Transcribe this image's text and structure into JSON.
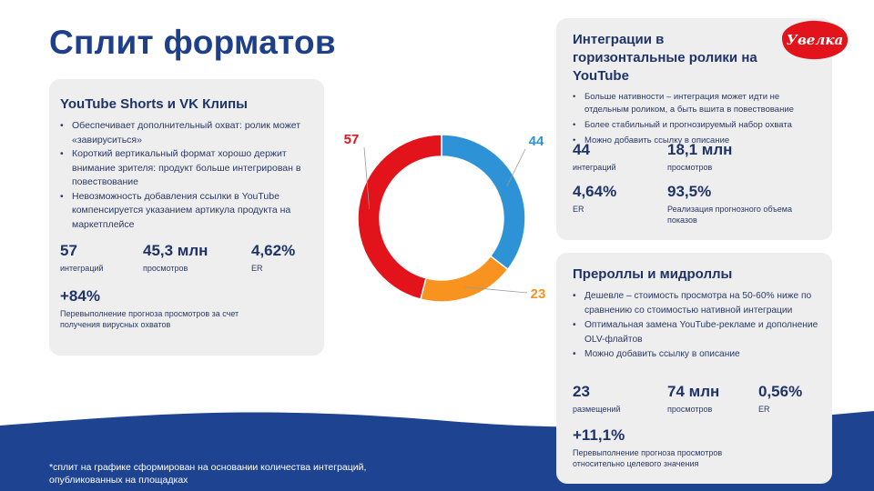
{
  "slide": {
    "title": "Сплит форматов",
    "footnote_line1": "*сплит на графике сформирован на основании количества интеграций,",
    "footnote_line2": "опубликованных на площадках",
    "logo_text": "Увелка"
  },
  "colors": {
    "accent_blue": "#2e93d6",
    "accent_red": "#e3131b",
    "accent_orange": "#f7931e",
    "navy": "#1e3f8c"
  },
  "shorts": {
    "title": "YouTube Shorts и VK Клипы",
    "bullets": [
      "Обеспечивает дополнительный охват: ролик может «завируситься»",
      "Короткий вертикальный формат хорошо держит внимание зрителя: продукт больше интегрирован в повествование",
      "Невозможность добавления ссылки в YouTube компенсируется указанием артикула продукта на маркетплейсе"
    ],
    "stats": [
      {
        "value": "57",
        "label": "интеграций"
      },
      {
        "value": "45,3 млн",
        "label": "просмотров"
      },
      {
        "value": "4,62%",
        "label": "ER"
      }
    ],
    "overperf": {
      "value": "+84%",
      "label": "Перевыполнение прогноза просмотров за счет получения вирусных охватов"
    }
  },
  "horizontal": {
    "title": "Интеграции в горизонтальные ролики на YouTube",
    "bullets": [
      "Больше нативности – интеграция может идти не отдельным роликом, а быть вшита в повествование",
      "Более стабильный и прогнозируемый набор охвата",
      "Можно добавить ссылку в описание"
    ],
    "stats": [
      {
        "value": "44",
        "label": "интеграций"
      },
      {
        "value": "18,1 млн",
        "label": "просмотров"
      },
      {
        "value": "4,64%",
        "label": "ER"
      },
      {
        "value": "93,5%",
        "label": "Реализация прогнозного объема показов"
      }
    ]
  },
  "preroll": {
    "title": "Прероллы и мидроллы",
    "bullets": [
      "Дешевле – стоимость просмотра на 50-60% ниже по сравнению со стоимостью нативной интеграции",
      "Оптимальная замена YouTube-рекламе и дополнение OLV-флайтов",
      "Можно добавить ссылку в описание"
    ],
    "stats": [
      {
        "value": "23",
        "label": "размещений"
      },
      {
        "value": "74 млн",
        "label": "просмотров"
      },
      {
        "value": "0,56%",
        "label": "ER"
      }
    ],
    "overperf": {
      "value": "+11,1%",
      "label": "Перевыполнение прогноза просмотров относительно целевого значения"
    }
  },
  "chart_data": {
    "type": "pie",
    "variant": "donut",
    "title": "",
    "categories": [
      "YouTube Shorts и VK Клипы",
      "Интеграции в горизонтальные ролики на YouTube",
      "Прероллы и мидроллы"
    ],
    "values": [
      57,
      44,
      23
    ],
    "colors": [
      "#e3131b",
      "#2e93d6",
      "#f7931e"
    ],
    "labels": [
      "57",
      "44",
      "23"
    ]
  }
}
